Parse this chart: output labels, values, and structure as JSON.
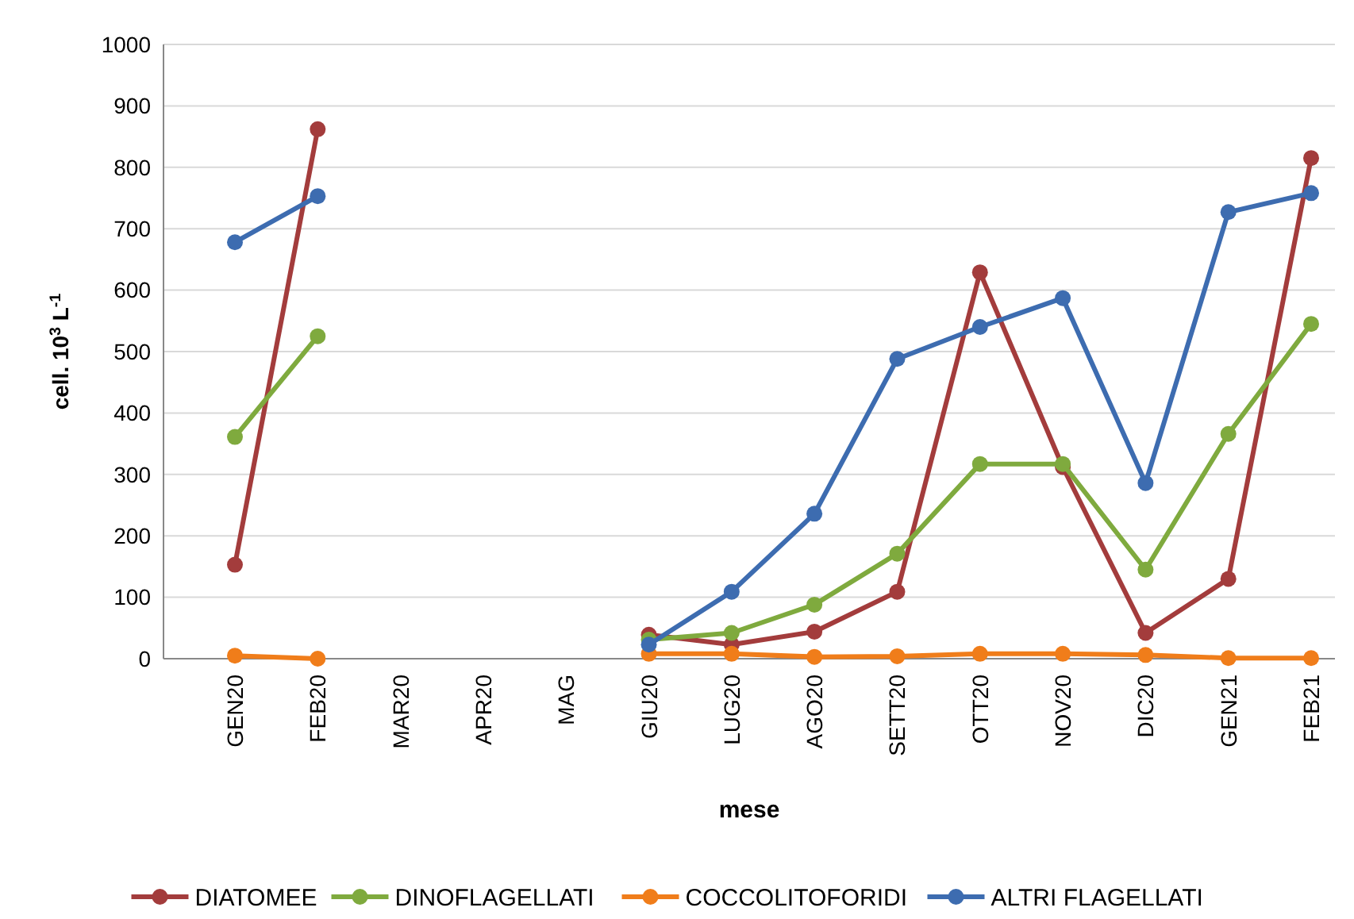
{
  "chart_data": {
    "type": "line",
    "xlabel": "mese",
    "ylabel": "cell. 10$^{3}$ L$^{-1}$",
    "categories": [
      "GEN20",
      "FEB20",
      "MAR20",
      "APR20",
      "MAG",
      "GIU20",
      "LUG20",
      "AGO20",
      "SETT20",
      "OTT20",
      "NOV20",
      "DIC20",
      "GEN21",
      "FEB21"
    ],
    "series": [
      {
        "name": "DIATOMEE",
        "color": "#a33c3c",
        "values": [
          153,
          862,
          null,
          null,
          null,
          39,
          23,
          44,
          109,
          629,
          312,
          42,
          130,
          815
        ]
      },
      {
        "name": "DINOFLAGELLATI",
        "color": "#7faa3e",
        "values": [
          361,
          525,
          null,
          null,
          null,
          31,
          42,
          88,
          171,
          317,
          317,
          145,
          366,
          545
        ]
      },
      {
        "name": "COCCOLITOFORIDI",
        "color": "#f07d1a",
        "values": [
          5,
          0,
          null,
          null,
          null,
          8,
          8,
          3,
          4,
          8,
          8,
          6,
          1,
          1
        ]
      },
      {
        "name": "ALTRI FLAGELLATI",
        "color": "#3d6cb0",
        "values": [
          678,
          753,
          null,
          null,
          null,
          23,
          109,
          236,
          488,
          540,
          587,
          286,
          727,
          758
        ]
      }
    ],
    "ylim": [
      0,
      1000
    ],
    "yticks": [
      0,
      100,
      200,
      300,
      400,
      500,
      600,
      700,
      800,
      900,
      1000
    ],
    "grid": "y",
    "legend": "bottom",
    "marker": "circle",
    "line_style": "solid"
  }
}
